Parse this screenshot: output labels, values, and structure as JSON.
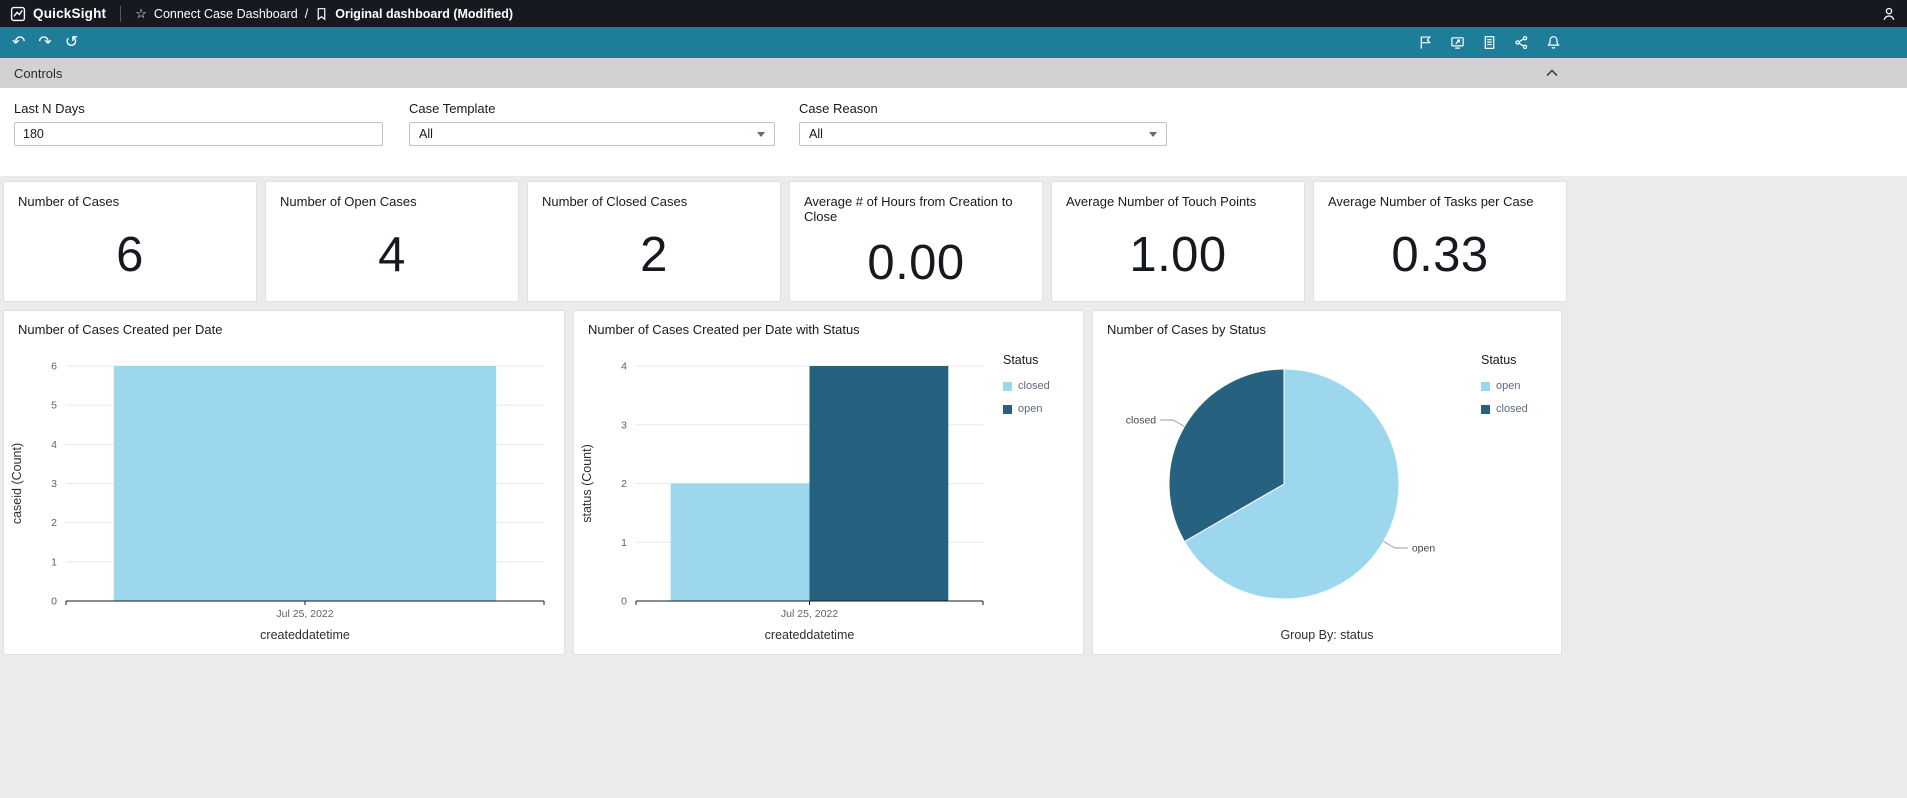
{
  "topbar": {
    "brand": "QuickSight",
    "breadcrumb": {
      "dashboard": "Connect Case Dashboard",
      "separator": "/",
      "page": "Original dashboard (Modified)"
    }
  },
  "icons": {
    "star": "☆",
    "undo": "↶",
    "redo": "↷",
    "reset": "↺"
  },
  "controls": {
    "header": "Controls",
    "last_n_days": {
      "label": "Last N Days",
      "value": "180"
    },
    "case_template": {
      "label": "Case Template",
      "value": "All"
    },
    "case_reason": {
      "label": "Case Reason",
      "value": "All"
    }
  },
  "kpis": [
    {
      "title": "Number of Cases",
      "value": "6"
    },
    {
      "title": "Number of Open Cases",
      "value": "4"
    },
    {
      "title": "Number of Closed Cases",
      "value": "2"
    },
    {
      "title": "Average # of Hours from Creation to Close",
      "value": "0.00"
    },
    {
      "title": "Average Number of Touch Points",
      "value": "1.00"
    },
    {
      "title": "Average Number of Tasks per Case",
      "value": "0.33"
    }
  ],
  "chart_data": [
    {
      "type": "bar",
      "title": "Number of Cases Created per Date",
      "xlabel": "createddatetime",
      "ylabel": "caseid (Count)",
      "categories": [
        "Jul 25, 2022"
      ],
      "series": [
        {
          "name": "caseid",
          "values": [
            6
          ],
          "color": "#9CD7EE"
        }
      ],
      "ylim": [
        0,
        6
      ],
      "yticks": [
        0,
        1,
        2,
        3,
        4,
        5,
        6
      ],
      "grid": true
    },
    {
      "type": "bar",
      "title": "Number of Cases Created per Date with Status",
      "xlabel": "createddatetime",
      "ylabel": "status (Count)",
      "categories": [
        "Jul 25, 2022"
      ],
      "legend_title": "Status",
      "series": [
        {
          "name": "closed",
          "values": [
            2
          ],
          "color": "#9CD7EE"
        },
        {
          "name": "open",
          "values": [
            4
          ],
          "color": "#26617F"
        }
      ],
      "ylim": [
        0,
        4
      ],
      "yticks": [
        0,
        1,
        2,
        3,
        4
      ],
      "grid": true,
      "legend_position": "right"
    },
    {
      "type": "pie",
      "title": "Number of Cases by Status",
      "legend_title": "Status",
      "slices": [
        {
          "name": "open",
          "value": 4,
          "color": "#9CD7EE"
        },
        {
          "name": "closed",
          "value": 2,
          "color": "#26617F"
        }
      ],
      "footer": "Group By: status",
      "legend_position": "right"
    }
  ],
  "colors": {
    "topbar": "#16191F",
    "toolbar": "#1E7D99",
    "bar_light": "#9CD7EE",
    "bar_dark": "#26617F"
  }
}
